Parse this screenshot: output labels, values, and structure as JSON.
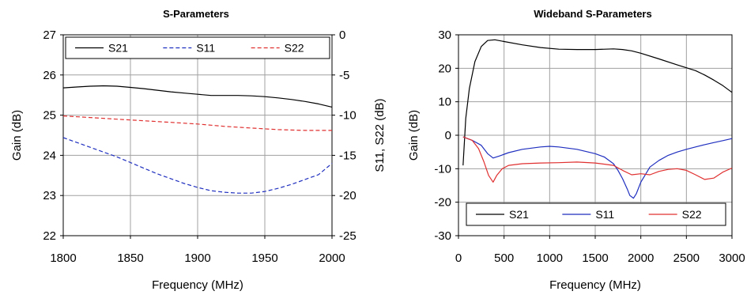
{
  "chart_data": [
    {
      "type": "line",
      "title": "S-Parameters",
      "xlabel": "Frequency (MHz)",
      "ylabel": "Gain (dB)",
      "y2label": "S11, S22 (dB)",
      "xlim": [
        1800,
        2000
      ],
      "ylim": [
        22,
        27
      ],
      "y2lim": [
        -25,
        0
      ],
      "xticks": [
        "1800",
        "1850",
        "1900",
        "1950",
        "2000"
      ],
      "yticks": [
        "22",
        "23",
        "24",
        "25",
        "26",
        "27"
      ],
      "y2ticks": [
        "-25",
        "-20",
        "-15",
        "-10",
        "-5",
        "0"
      ],
      "grid": true,
      "legend_position": "top",
      "series": [
        {
          "name": "S21",
          "axis": "left",
          "color": "#000000",
          "dash": "solid",
          "x": [
            1800,
            1810,
            1820,
            1830,
            1840,
            1850,
            1860,
            1870,
            1880,
            1890,
            1900,
            1910,
            1920,
            1930,
            1940,
            1950,
            1960,
            1970,
            1980,
            1990,
            2000
          ],
          "y": [
            25.68,
            25.7,
            25.72,
            25.73,
            25.72,
            25.69,
            25.66,
            25.62,
            25.58,
            25.55,
            25.52,
            25.49,
            25.49,
            25.49,
            25.48,
            25.46,
            25.43,
            25.39,
            25.34,
            25.28,
            25.2
          ]
        },
        {
          "name": "S11",
          "axis": "right",
          "color": "#1f2fbf",
          "dash": "dashed",
          "x": [
            1800,
            1810,
            1820,
            1830,
            1840,
            1850,
            1860,
            1870,
            1880,
            1890,
            1900,
            1910,
            1920,
            1930,
            1940,
            1950,
            1960,
            1970,
            1980,
            1990,
            2000
          ],
          "y": [
            -12.8,
            -13.4,
            -14.0,
            -14.6,
            -15.2,
            -15.9,
            -16.6,
            -17.3,
            -17.9,
            -18.5,
            -19.0,
            -19.4,
            -19.6,
            -19.7,
            -19.7,
            -19.5,
            -19.1,
            -18.6,
            -18.0,
            -17.4,
            -16.0
          ]
        },
        {
          "name": "S22",
          "axis": "right",
          "color": "#e03030",
          "dash": "dashed",
          "x": [
            1800,
            1820,
            1840,
            1860,
            1880,
            1900,
            1920,
            1940,
            1960,
            1980,
            2000
          ],
          "y": [
            -10.1,
            -10.3,
            -10.5,
            -10.7,
            -10.9,
            -11.1,
            -11.4,
            -11.6,
            -11.8,
            -11.9,
            -11.9
          ]
        }
      ]
    },
    {
      "type": "line",
      "title": "Wideband S-Parameters",
      "xlabel": "Frequency (MHz)",
      "ylabel": "Gain (dB)",
      "xlim": [
        0,
        3000
      ],
      "ylim": [
        -30,
        30
      ],
      "xticks": [
        "0",
        "500",
        "1000",
        "1500",
        "2000",
        "2500",
        "3000"
      ],
      "yticks": [
        "-30",
        "-20",
        "-10",
        "0",
        "10",
        "20",
        "30"
      ],
      "grid": true,
      "legend_position": "bottom",
      "series": [
        {
          "name": "S21",
          "color": "#000000",
          "dash": "solid",
          "x": [
            50,
            80,
            120,
            180,
            250,
            320,
            400,
            500,
            700,
            900,
            1100,
            1300,
            1500,
            1700,
            1800,
            1900,
            2000,
            2200,
            2400,
            2600,
            2700,
            2800,
            2900,
            3000
          ],
          "y": [
            -9,
            5,
            14,
            22,
            26.5,
            28.3,
            28.5,
            28.0,
            27.0,
            26.2,
            25.7,
            25.6,
            25.6,
            25.8,
            25.6,
            25.2,
            24.5,
            22.8,
            21.0,
            19.3,
            18.0,
            16.5,
            14.8,
            12.8
          ]
        },
        {
          "name": "S11",
          "color": "#1f2fbf",
          "dash": "solid",
          "x": [
            50,
            150,
            250,
            320,
            380,
            450,
            550,
            700,
            900,
            1000,
            1100,
            1300,
            1500,
            1600,
            1700,
            1750,
            1800,
            1850,
            1880,
            1920,
            1950,
            2000,
            2100,
            2200,
            2300,
            2400,
            2500,
            2600,
            2700,
            2800,
            2900,
            3000
          ],
          "y": [
            -0.5,
            -1.5,
            -3.0,
            -5.5,
            -6.8,
            -6.2,
            -5.2,
            -4.2,
            -3.5,
            -3.3,
            -3.5,
            -4.2,
            -5.5,
            -6.5,
            -8.5,
            -10.5,
            -13.0,
            -16.0,
            -18.0,
            -18.8,
            -17.5,
            -14.0,
            -9.5,
            -7.5,
            -6.0,
            -5.0,
            -4.2,
            -3.5,
            -2.8,
            -2.2,
            -1.6,
            -1.0
          ]
        },
        {
          "name": "S22",
          "color": "#e03030",
          "dash": "solid",
          "x": [
            50,
            150,
            220,
            280,
            330,
            380,
            420,
            480,
            550,
            700,
            900,
            1100,
            1300,
            1500,
            1700,
            1800,
            1900,
            2000,
            2100,
            2200,
            2300,
            2400,
            2500,
            2600,
            2700,
            2800,
            2900,
            3000
          ],
          "y": [
            -0.5,
            -1.5,
            -4.0,
            -8.0,
            -12.0,
            -14.0,
            -12.0,
            -10.0,
            -9.0,
            -8.5,
            -8.3,
            -8.2,
            -8.0,
            -8.3,
            -9.0,
            -10.5,
            -11.8,
            -11.5,
            -11.8,
            -10.8,
            -10.2,
            -10.0,
            -10.5,
            -11.8,
            -13.2,
            -12.8,
            -11.0,
            -9.8
          ]
        }
      ]
    }
  ]
}
